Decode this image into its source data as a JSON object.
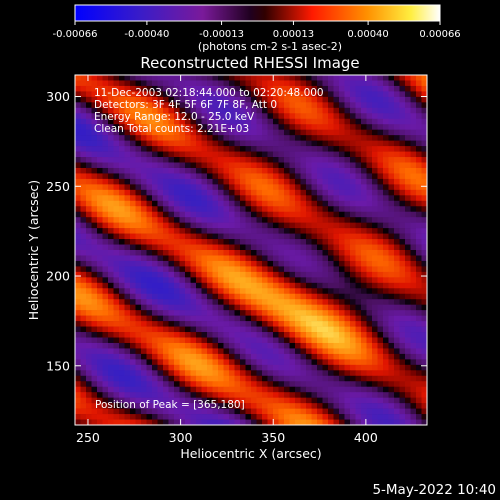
{
  "chart_data": {
    "type": "heatmap",
    "title": "Reconstructed RHESSI Image",
    "xlabel": "Heliocentric X (arcsec)",
    "ylabel": "Heliocentric Y (arcsec)",
    "xlim": [
      243,
      433
    ],
    "ylim": [
      117,
      312
    ],
    "xticks": [
      250,
      300,
      350,
      400
    ],
    "yticks": [
      150,
      200,
      250,
      300
    ],
    "colorbar": {
      "range": [
        -0.00066,
        0.00066
      ],
      "tick_labels": [
        "-0.00066",
        "-0.00040",
        "-0.00013",
        "0.00013",
        "0.00040",
        "0.00066"
      ],
      "label": "(photons cm-2 s-1 asec-2)",
      "colors": [
        "#0000ff",
        "#4b0082",
        "#8b0080",
        "#000000",
        "#ff0000",
        "#ff8c00",
        "#ffff00",
        "#ffffff"
      ]
    },
    "annotations": [
      "11-Dec-2003 02:18:44.000 to 02:20:48.000",
      "Detectors: 3F 4F 5F 6F 7F 8F, Att 0",
      "Energy Range: 12.0 - 25.0 keV",
      "Clean    Total counts: 2.21E+03"
    ],
    "peak_label": "Position of Peak = [365,180]",
    "peak": [
      365,
      180
    ]
  },
  "footer": {
    "timestamp": "5-May-2022 10:40"
  }
}
